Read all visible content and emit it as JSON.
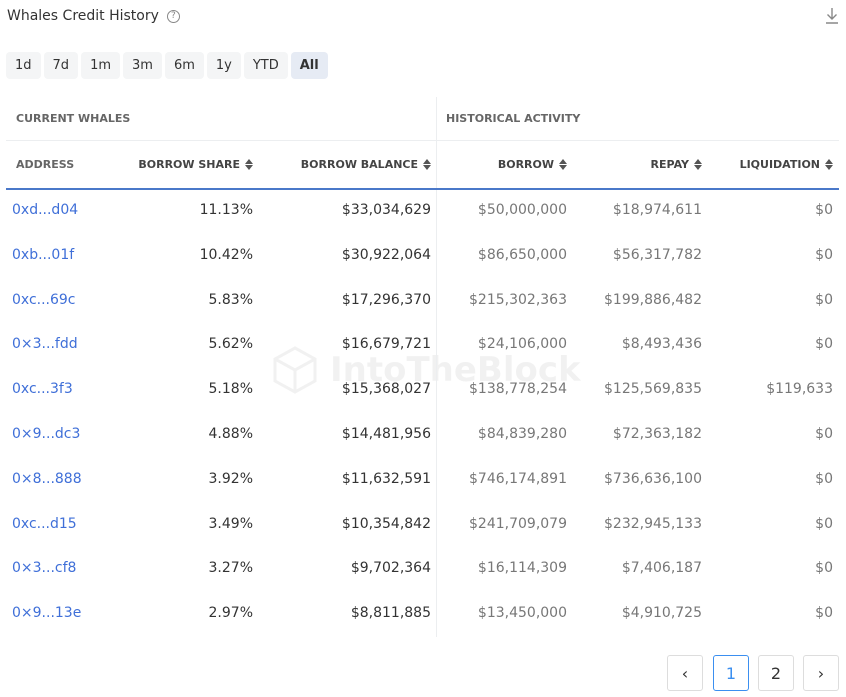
{
  "header": {
    "title": "Whales Credit History",
    "help_icon": "question-circle-icon",
    "download_icon": "download-icon"
  },
  "ranges": [
    {
      "label": "1d"
    },
    {
      "label": "7d"
    },
    {
      "label": "1m"
    },
    {
      "label": "3m"
    },
    {
      "label": "6m"
    },
    {
      "label": "1y"
    },
    {
      "label": "YTD"
    },
    {
      "label": "All",
      "active": true
    }
  ],
  "table": {
    "groups": [
      "CURRENT WHALES",
      "HISTORICAL ACTIVITY"
    ],
    "columns": [
      "ADDRESS",
      "BORROW SHARE",
      "BORROW BALANCE",
      "BORROW",
      "REPAY",
      "LIQUIDATION"
    ],
    "rows": [
      [
        "0xd...d04",
        "11.13%",
        "$33,034,629",
        "$50,000,000",
        "$18,974,611",
        "$0"
      ],
      [
        "0xb...01f",
        "10.42%",
        "$30,922,064",
        "$86,650,000",
        "$56,317,782",
        "$0"
      ],
      [
        "0xc...69c",
        "5.83%",
        "$17,296,370",
        "$215,302,363",
        "$199,886,482",
        "$0"
      ],
      [
        "0×3...fdd",
        "5.62%",
        "$16,679,721",
        "$24,106,000",
        "$8,493,436",
        "$0"
      ],
      [
        "0xc...3f3",
        "5.18%",
        "$15,368,027",
        "$138,778,254",
        "$125,569,835",
        "$119,633"
      ],
      [
        "0×9...dc3",
        "4.88%",
        "$14,481,956",
        "$84,839,280",
        "$72,363,182",
        "$0"
      ],
      [
        "0×8...888",
        "3.92%",
        "$11,632,591",
        "$746,174,891",
        "$736,636,100",
        "$0"
      ],
      [
        "0xc...d15",
        "3.49%",
        "$10,354,842",
        "$241,709,079",
        "$232,945,133",
        "$0"
      ],
      [
        "0×3...cf8",
        "3.27%",
        "$9,702,364",
        "$16,114,309",
        "$7,406,187",
        "$0"
      ],
      [
        "0×9...13e",
        "2.97%",
        "$8,811,885",
        "$13,450,000",
        "$4,910,725",
        "$0"
      ]
    ]
  },
  "watermark": "IntoTheBlock",
  "pagination": {
    "pages": [
      "1",
      "2"
    ],
    "current": "1"
  },
  "colors": {
    "link": "#3f6fd8",
    "accent": "#4a78c9",
    "active_page": "#3b8ff0"
  }
}
